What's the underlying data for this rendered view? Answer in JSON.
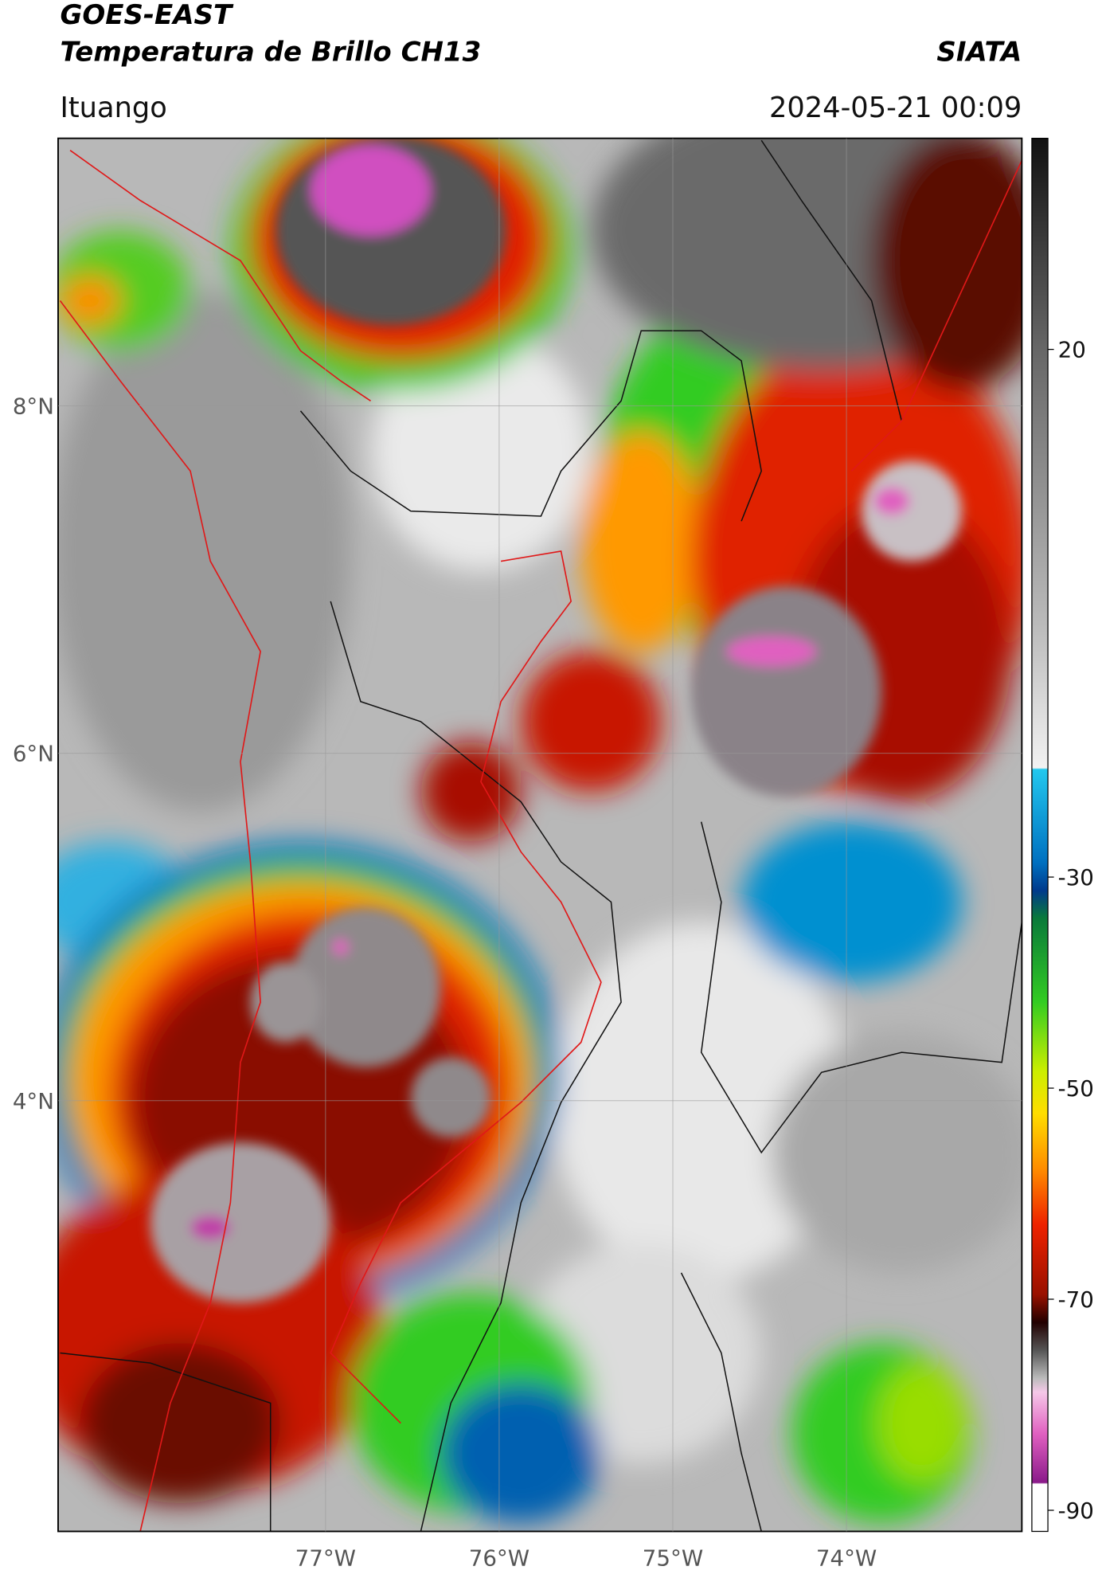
{
  "header": {
    "satellite": "GOES-EAST",
    "product": "Temperatura de Brillo CH13",
    "agency": "SIATA",
    "location": "Ituango",
    "datetime": "2024-05-21 00:09"
  },
  "map": {
    "lonlim": [
      -78.54,
      -72.99
    ],
    "latlim": [
      1.52,
      9.54
    ],
    "lat_ticks": [
      {
        "value": 8,
        "label": "8°N"
      },
      {
        "value": 6,
        "label": "6°N"
      },
      {
        "value": 4,
        "label": "4°N"
      }
    ],
    "lon_ticks": [
      {
        "value": -77,
        "label": "77°W"
      },
      {
        "value": -76,
        "label": "76°W"
      },
      {
        "value": -75,
        "label": "75°W"
      },
      {
        "value": -74,
        "label": "74°W"
      }
    ],
    "grid": true
  },
  "colorbar": {
    "range": [
      -92,
      40
    ],
    "ticks": [
      20,
      -30,
      -50,
      -70,
      -90
    ]
  }
}
